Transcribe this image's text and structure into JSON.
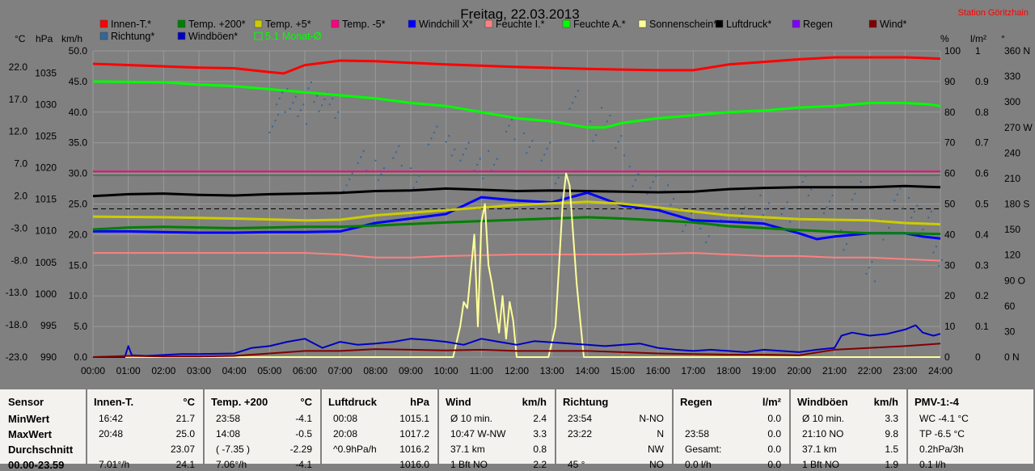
{
  "title": "Freitag, 22.03.2013",
  "station": "Station Göritzhain",
  "axis_headers": {
    "temp": "°C",
    "hpa": "hPa",
    "kmh": "km/h",
    "pct": "%",
    "rain": "l/m²",
    "deg": "°"
  },
  "chart_data": {
    "type": "line",
    "x_ticks": [
      "00:00",
      "01:00",
      "02:00",
      "03:00",
      "04:00",
      "05:00",
      "06:00",
      "07:00",
      "08:00",
      "09:00",
      "10:00",
      "11:00",
      "12:00",
      "13:00",
      "14:00",
      "15:00",
      "16:00",
      "17:00",
      "18:00",
      "19:00",
      "20:00",
      "21:00",
      "22:00",
      "23:00",
      "24:00"
    ],
    "axes": {
      "temp": {
        "ticks": [
          "22.0",
          "17.0",
          "12.0",
          "7.0",
          "2.0",
          "-3.0",
          "-8.0",
          "-13.0",
          "-18.0",
          "-23.0"
        ],
        "range": [
          -23,
          24.5
        ]
      },
      "hpa": {
        "ticks": [
          "1035",
          "1030",
          "1025",
          "1020",
          "1015",
          "1010",
          "1005",
          "1000",
          "995",
          "990"
        ],
        "range": [
          990,
          1038.5
        ]
      },
      "kmh": {
        "ticks": [
          "50.0",
          "45.0",
          "40.0",
          "35.0",
          "30.0",
          "25.0",
          "20.0",
          "15.0",
          "10.0",
          "5.0",
          "0.0"
        ],
        "range": [
          0,
          50
        ]
      },
      "pct": {
        "ticks": [
          "100",
          "90",
          "80",
          "70",
          "60",
          "50",
          "40",
          "30",
          "20",
          "10",
          "0"
        ],
        "range": [
          0,
          100
        ]
      },
      "rain": {
        "ticks": [
          "1",
          "0.9",
          "0.8",
          "0.7",
          "0.6",
          "0.5",
          "0.4",
          "0.3",
          "0.2",
          "0.1",
          "0"
        ],
        "range": [
          0,
          1
        ]
      },
      "deg": {
        "ticks": [
          "360 N",
          "330",
          "300",
          "270 W",
          "240",
          "210",
          "180 S",
          "150",
          "120",
          "90 O",
          "60",
          "30",
          "0  N"
        ],
        "range": [
          0,
          360
        ]
      }
    },
    "series": [
      {
        "name": "Innen-T.*",
        "color": "#ff0000",
        "axis": "temp",
        "x": [
          0,
          2,
          3,
          4,
          5,
          5.4,
          6,
          7,
          8,
          10,
          12,
          14,
          15,
          16,
          17,
          18,
          19,
          20,
          21,
          22,
          23,
          24
        ],
        "y": [
          22.5,
          22.1,
          21.9,
          21.8,
          21.2,
          21.0,
          22.3,
          23.0,
          22.9,
          22.4,
          22.0,
          21.7,
          21.6,
          21.5,
          21.5,
          22.4,
          22.8,
          23.2,
          23.5,
          23.5,
          23.5,
          23.3
        ]
      },
      {
        "name": "Feuchte A.*",
        "color": "#00ff00",
        "axis": "pct",
        "x": [
          0,
          2,
          3,
          4,
          5,
          6,
          7,
          8,
          9,
          10,
          11,
          12,
          13,
          14,
          14.5,
          15,
          16,
          17,
          18,
          19,
          20,
          21,
          22,
          23,
          23.7,
          24
        ],
        "y": [
          90,
          89.8,
          89,
          88.5,
          87.5,
          86.5,
          85.5,
          84.5,
          83,
          82,
          80,
          78,
          77,
          75,
          75,
          76.5,
          78,
          79,
          80,
          80.5,
          81.5,
          82,
          83,
          83,
          82.5,
          82
        ]
      },
      {
        "name": "Temp. -5*",
        "color": "#ff0080",
        "axis": "temp",
        "x": [
          0,
          24
        ],
        "y": [
          5.8,
          5.8
        ]
      },
      {
        "name": "Luftdruck*",
        "color": "#000000",
        "axis": "hpa",
        "x": [
          0,
          1,
          2,
          3,
          4,
          5,
          6,
          7,
          8,
          9,
          10,
          11,
          12,
          13,
          14,
          15,
          16,
          17,
          18,
          19,
          20,
          21,
          22,
          23,
          24
        ],
        "y": [
          1015.5,
          1015.8,
          1015.9,
          1015.7,
          1015.6,
          1015.8,
          1015.9,
          1016.0,
          1016.3,
          1016.4,
          1016.7,
          1016.5,
          1016.3,
          1016.4,
          1016.3,
          1016.2,
          1016.1,
          1016.2,
          1016.6,
          1016.8,
          1016.9,
          1016.9,
          1016.9,
          1017.1,
          1016.9
        ]
      },
      {
        "name": "Windchill X*",
        "color": "#0000ff",
        "axis": "temp",
        "x": [
          0,
          1,
          2,
          3,
          4,
          5,
          6,
          7,
          8,
          9,
          10,
          11,
          12,
          13,
          14,
          15,
          16,
          17,
          18,
          19,
          20,
          20.5,
          21,
          22,
          23,
          23.5,
          24
        ],
        "y": [
          -3.5,
          -3.5,
          -3.6,
          -3.7,
          -3.7,
          -3.6,
          -3.6,
          -3.5,
          -2.2,
          -1.5,
          -0.8,
          1.8,
          1.3,
          1.0,
          2.5,
          0.5,
          -0.2,
          -1.8,
          -2.0,
          -2.3,
          -3.8,
          -4.7,
          -4.3,
          -3.8,
          -3.8,
          -4.3,
          -4.6
        ]
      },
      {
        "name": "Temp. +5*",
        "color": "#cccc00",
        "axis": "temp",
        "x": [
          0,
          2,
          4,
          6,
          7,
          8,
          10,
          12,
          14,
          15,
          16,
          17,
          18,
          20,
          22,
          23,
          24
        ],
        "y": [
          -1.2,
          -1.3,
          -1.5,
          -1.8,
          -1.7,
          -1.0,
          -0.2,
          0.6,
          1.1,
          0.8,
          0.2,
          -0.4,
          -1.0,
          -1.6,
          -1.8,
          -2.2,
          -2.4
        ]
      },
      {
        "name": "Temp. +200*",
        "color": "#008000",
        "axis": "temp",
        "x": [
          0,
          1,
          2,
          3,
          4,
          5,
          6,
          7,
          8,
          10,
          12,
          14,
          15,
          16,
          17,
          18,
          20,
          22,
          23,
          24
        ],
        "y": [
          -3.2,
          -2.9,
          -2.8,
          -2.9,
          -3.0,
          -2.9,
          -2.8,
          -2.8,
          -2.6,
          -2.1,
          -1.7,
          -1.3,
          -1.5,
          -1.8,
          -2.1,
          -2.7,
          -3.3,
          -3.8,
          -3.8,
          -3.9
        ]
      },
      {
        "name": "Feuchte I.*",
        "color": "#ff8080",
        "axis": "pct",
        "x": [
          0,
          6,
          7,
          8,
          9,
          10,
          12,
          15,
          17,
          18,
          19,
          20,
          21,
          22,
          23,
          24
        ],
        "y": [
          34,
          34,
          33.5,
          32.5,
          32.5,
          33,
          33.5,
          33.5,
          34,
          33.5,
          33,
          33,
          32.5,
          32.5,
          32,
          31.5
        ]
      },
      {
        "name": "Sonnenschein*",
        "color": "#ffff99",
        "axis": "kmh",
        "x": [
          0,
          10.2,
          10.4,
          10.5,
          10.6,
          10.8,
          10.9,
          11.0,
          11.1,
          11.2,
          11.3,
          11.4,
          11.5,
          11.6,
          11.7,
          11.8,
          11.9,
          12.0,
          12.2,
          12.4,
          12.9,
          13.1,
          13.3,
          13.4,
          13.5,
          13.7,
          13.9,
          14.2,
          24
        ],
        "y": [
          0,
          0,
          5,
          9,
          8,
          20,
          5,
          22,
          25,
          15,
          12,
          8,
          4,
          10,
          3,
          9,
          6,
          0,
          0,
          0,
          0,
          5,
          25,
          30,
          28,
          12,
          0,
          0,
          0
        ]
      },
      {
        "name": "Windböen*",
        "color": "#0000c0",
        "axis": "kmh",
        "x": [
          0,
          0.9,
          1.0,
          1.1,
          1.5,
          2.5,
          3.0,
          4.0,
          4.5,
          5.0,
          5.5,
          6.0,
          6.5,
          7.0,
          7.5,
          8.0,
          8.5,
          9.0,
          9.5,
          10.0,
          10.5,
          11.0,
          11.5,
          12.0,
          12.5,
          13.0,
          13.5,
          14.0,
          14.5,
          15.0,
          15.5,
          16.0,
          16.5,
          17.0,
          17.5,
          18.0,
          18.5,
          19.0,
          19.5,
          20.0,
          20.5,
          21.0,
          21.2,
          21.5,
          22.0,
          22.5,
          23.0,
          23.3,
          23.5,
          23.8,
          24.0
        ],
        "y": [
          0,
          0,
          1.8,
          0.3,
          0.2,
          0.5,
          0.5,
          0.6,
          1.5,
          1.8,
          2.5,
          3.0,
          1.5,
          2.5,
          2.0,
          2.2,
          2.5,
          3.0,
          2.8,
          2.5,
          2.0,
          3.0,
          2.5,
          2.0,
          2.6,
          2.4,
          2.2,
          2.0,
          1.8,
          2.0,
          2.2,
          1.5,
          1.2,
          1.0,
          1.2,
          1.0,
          0.8,
          1.2,
          1.0,
          0.8,
          1.2,
          1.5,
          3.5,
          4.0,
          3.5,
          3.8,
          4.5,
          5.2,
          4.0,
          3.5,
          3.8
        ]
      },
      {
        "name": "Wind*",
        "color": "#800000",
        "axis": "kmh",
        "x": [
          0,
          1,
          2,
          3,
          4,
          5,
          6,
          7,
          8,
          9,
          10,
          11,
          12,
          13,
          14,
          15,
          16,
          17,
          18,
          19,
          20,
          21,
          22,
          23,
          24
        ],
        "y": [
          0,
          0.2,
          0.1,
          0.1,
          0.2,
          0.6,
          1.0,
          1.0,
          1.3,
          1.2,
          1.1,
          1.2,
          1.0,
          1.0,
          1.0,
          0.8,
          0.6,
          0.5,
          0.4,
          0.4,
          0.3,
          1.2,
          1.5,
          1.8,
          2.2
        ]
      }
    ],
    "richtung": {
      "name": "Richtung*",
      "color": "#336699",
      "x": [
        5.1,
        5.3,
        5.6,
        5.9,
        6.2,
        6.5,
        6.8,
        7.2,
        7.6,
        8.1,
        8.6,
        9.1,
        9.6,
        10.1,
        10.5,
        10.9,
        11.3,
        11.8,
        12.3,
        12.8,
        13.2,
        13.6,
        14.1,
        14.5,
        14.9,
        15.3,
        15.8,
        16.3,
        16.8,
        17.3,
        17.8,
        18.4,
        19.0,
        19.6,
        20.2,
        20.8,
        21.2,
        21.6,
        22.0,
        22.4,
        22.8,
        23.2,
        23.6,
        23.9
      ],
      "y": [
        280,
        300,
        305,
        290,
        310,
        300,
        295,
        210,
        230,
        220,
        240,
        215,
        260,
        250,
        245,
        220,
        230,
        270,
        255,
        240,
        200,
        305,
        270,
        280,
        250,
        215,
        200,
        190,
        160,
        150,
        170,
        165,
        180,
        175,
        200,
        180,
        140,
        200,
        100,
        150,
        190,
        180,
        160,
        120
      ]
    },
    "legend": [
      "Innen-T.*",
      "Temp. +200*",
      "Temp. +5*",
      "Temp. -5*",
      "Windchill X*",
      "Feuchte I.*",
      "Feuchte A.*",
      "Sonnenschein*",
      "Luftdruck*",
      "Regen",
      "Wind*",
      "Richtung*",
      "Windböen*",
      "5.1 Monat-Ø"
    ],
    "legend_colors": [
      "#ff0000",
      "#008000",
      "#cccc00",
      "#ff0080",
      "#0000ff",
      "#ff8080",
      "#00ff00",
      "#ffff99",
      "#000000",
      "#8000ff",
      "#800000",
      "#336699",
      "#0000c0",
      "#00ff00"
    ]
  },
  "table": {
    "row_labels": [
      "Sensor",
      "MinWert",
      "MaxWert",
      "Durchschnitt",
      "00.00-23.59"
    ],
    "columns": [
      {
        "title": "Innen-T.",
        "unit": "°C",
        "rows": [
          [
            "16:42",
            "21.7"
          ],
          [
            "20:48",
            "25.0"
          ],
          [
            "",
            "23.07"
          ],
          [
            "7.01°/h",
            "24.1"
          ]
        ]
      },
      {
        "title": "Temp. +200",
        "unit": "°C",
        "rows": [
          [
            "23:58",
            "-4.1"
          ],
          [
            "14:08",
            "-0.5"
          ],
          [
            "( -7.35 )",
            "-2.29"
          ],
          [
            "7.06°/h",
            "-4.1"
          ]
        ]
      },
      {
        "title": "Luftdruck",
        "unit": "hPa",
        "rows": [
          [
            "00:08",
            "1015.1"
          ],
          [
            "20:08",
            "1017.2"
          ],
          [
            "^0.9hPa/h",
            "1016.2"
          ],
          [
            "",
            "1016.0"
          ]
        ]
      },
      {
        "title": "Wind",
        "unit": "km/h",
        "rows": [
          [
            "Ø 10 min.",
            "2.4"
          ],
          [
            "10:47   W-NW",
            "3.3"
          ],
          [
            "37.1 km",
            "0.8"
          ],
          [
            "1 Bft NO",
            "2.2"
          ]
        ]
      },
      {
        "title": "Richtung",
        "unit": "",
        "rows": [
          [
            "23:54",
            "N-NO"
          ],
          [
            "23:22",
            "N"
          ],
          [
            "",
            "NW"
          ],
          [
            "45 °",
            "NO"
          ]
        ]
      },
      {
        "title": "Regen",
        "unit": "l/m²",
        "rows": [
          [
            "",
            "0.0"
          ],
          [
            "23:58",
            "0.0"
          ],
          [
            "Gesamt:",
            "0.0"
          ],
          [
            "0.0 l/h",
            "0.0"
          ]
        ]
      },
      {
        "title": "Windböen",
        "unit": "km/h",
        "rows": [
          [
            "Ø 10 min.",
            "3.3"
          ],
          [
            "21:10   NO",
            "9.8"
          ],
          [
            "37.1 km",
            "1.5"
          ],
          [
            "1 Bft NO",
            "1.9"
          ]
        ]
      },
      {
        "title": "PMV-1:-4",
        "unit": "",
        "rows": [
          [
            "WC -4.1 °C",
            ""
          ],
          [
            "TP -6.5 °C",
            ""
          ],
          [
            "0.2hPa/3h",
            ""
          ],
          [
            "0.1 l/h",
            ""
          ]
        ]
      }
    ]
  }
}
